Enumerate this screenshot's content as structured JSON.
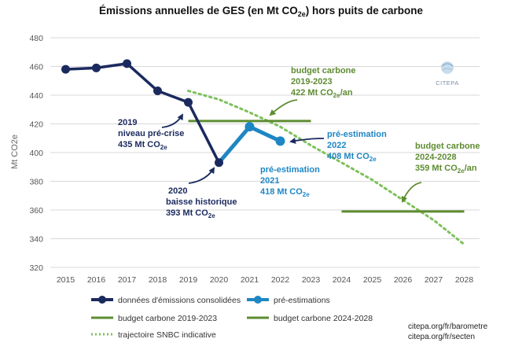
{
  "chart_data": {
    "type": "line",
    "title": {
      "main": "Émissions annuelles de GES (en Mt CO",
      "sub": "2e",
      "tail": ") hors puits de carbone"
    },
    "ylabel": "Mt CO2e",
    "ylim": [
      320,
      480
    ],
    "yticks": [
      320,
      340,
      360,
      380,
      400,
      420,
      440,
      460,
      480
    ],
    "x_ticks": [
      2015,
      2016,
      2017,
      2018,
      2019,
      2020,
      2021,
      2022,
      2023,
      2024,
      2025,
      2026,
      2027,
      2028
    ],
    "xlim": [
      2014.5,
      2028.5
    ],
    "grid": "horizontal",
    "series": [
      {
        "name": "données d'émissions consolidées",
        "key": "consolidated",
        "color": "#1b2a5e",
        "x": [
          2015,
          2016,
          2017,
          2018,
          2019,
          2020
        ],
        "y": [
          458,
          459,
          462,
          443,
          435,
          393
        ]
      },
      {
        "name": "pré-estimations",
        "key": "preest",
        "color": "#1f86c4",
        "x": [
          2020,
          2021,
          2022
        ],
        "y": [
          393,
          418,
          408
        ]
      },
      {
        "name": "budget carbone 2019-2023",
        "key": "budget1",
        "color": "#5e8c31",
        "x": [
          2019,
          2023
        ],
        "y": [
          422,
          422
        ]
      },
      {
        "name": "budget carbone 2024-2028",
        "key": "budget2",
        "color": "#5e8c31",
        "x": [
          2024,
          2028
        ],
        "y": [
          359,
          359
        ]
      },
      {
        "name": "trajectoire SNBC indicative",
        "key": "snbc",
        "color": "#7dc15a",
        "x": [
          2019,
          2020,
          2021,
          2022,
          2023,
          2024,
          2025,
          2026,
          2027,
          2028
        ],
        "y": [
          443,
          437,
          428,
          418,
          405,
          393,
          381,
          367,
          353,
          336
        ]
      }
    ],
    "annotations": {
      "a2019": {
        "l1": "2019",
        "l2": "niveau pré-crise",
        "l3": "435 Mt CO",
        "sub": "2e"
      },
      "a2020": {
        "l1": "2020",
        "l2": "baisse historique",
        "l3": "393 Mt CO",
        "sub": "2e"
      },
      "a2021": {
        "l1": "pré-estimation",
        "l2": "2021",
        "l3": "418 Mt CO",
        "sub": "2e"
      },
      "a2022": {
        "l1": "pré-estimation",
        "l2": "2022",
        "l3": "408 Mt CO",
        "sub": "2e"
      },
      "b1": {
        "l1": "budget carbone",
        "l2": "2019-2023",
        "l3": "422 Mt CO",
        "sub": "2e",
        "tail": "/an"
      },
      "b2": {
        "l1": "budget carbone",
        "l2": "2024-2028",
        "l3": "359 Mt CO",
        "sub": "2e",
        "tail": "/an"
      }
    },
    "legend_position": "bottom"
  },
  "logo": {
    "text": "CITEPA"
  },
  "sources": [
    "citepa.org/fr/barometre",
    "citepa.org/fr/secten"
  ]
}
